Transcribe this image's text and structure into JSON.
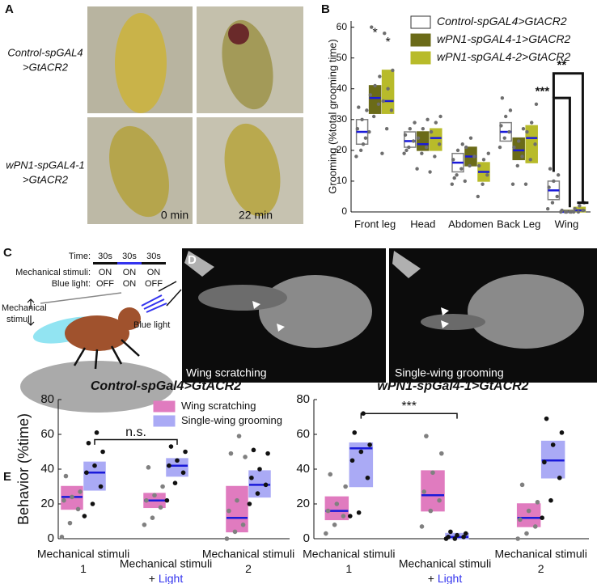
{
  "panel_letters": [
    "A",
    "B",
    "C",
    "D",
    "E"
  ],
  "panel_a": {
    "row_labels": [
      [
        "Control-spGAL4",
        ">GtACR2"
      ],
      [
        "wPN1-spGAL4-1",
        ">GtACR2"
      ]
    ],
    "time_labels": [
      "0 min",
      "22 min"
    ]
  },
  "panel_c": {
    "time_label": "Time:",
    "durations": [
      "30s",
      "30s",
      "30s"
    ],
    "rows": [
      {
        "label": "Mechanical stimuli:",
        "states": [
          "ON",
          "ON",
          "ON"
        ]
      },
      {
        "label": "Blue light:",
        "states": [
          "OFF",
          "ON",
          "OFF"
        ]
      }
    ],
    "stimulus_label": [
      "Mechanical",
      "stimuli"
    ],
    "light_label": "Blue light"
  },
  "panel_d": {
    "labels": [
      "Wing scratching",
      "Single-wing grooming"
    ]
  },
  "chart_data": [
    {
      "type": "box",
      "ylabel": "Grooming (%total grooming time)",
      "categories": [
        "Front leg",
        "Head",
        "Abdomen",
        "Back Leg",
        "Wing"
      ],
      "ylim": [
        0,
        62
      ],
      "yticks": [
        0,
        10,
        20,
        30,
        40,
        50,
        60
      ],
      "median_color": "#1a1ad9",
      "point_colors": [
        "#6e6e6e",
        "#6e6e6e",
        "#6e6e6e"
      ],
      "series": [
        {
          "name": "Control-spGAL4>GtACR2",
          "color": "#ffffff",
          "edge": "#808080",
          "q1": [
            22,
            21,
            13,
            23,
            4
          ],
          "median": [
            26,
            23,
            16,
            26,
            7
          ],
          "q3": [
            30,
            26,
            19,
            29,
            10
          ],
          "points": [
            [
              18,
              20,
              24,
              27,
              30,
              33,
              34,
              22
            ],
            [
              19,
              21,
              23,
              25,
              27,
              29,
              20
            ],
            [
              9,
              12,
              14,
              17,
              20,
              22,
              11
            ],
            [
              21,
              24,
              26,
              28,
              31,
              33,
              37
            ],
            [
              1,
              3,
              5,
              8,
              10,
              12,
              14
            ]
          ]
        },
        {
          "name": "wPN1-spGAL4-1>GtACR2",
          "color": "#6b6b18",
          "edge": "#6b6b18",
          "q1": [
            32,
            20,
            15,
            17,
            0
          ],
          "median": [
            37,
            22,
            18,
            20,
            0
          ],
          "q3": [
            41,
            26,
            21,
            24,
            0.5
          ],
          "points": [
            [
              26,
              31,
              35,
              38,
              41,
              44,
              60
            ],
            [
              14,
              19,
              21,
              24,
              27,
              30
            ],
            [
              10,
              15,
              18,
              21,
              24
            ],
            [
              9,
              15,
              18,
              21,
              23,
              27
            ],
            [
              0,
              0,
              0,
              0.5,
              0,
              0
            ]
          ]
        },
        {
          "name": "wPN1-spGAL4-2>GtACR2",
          "color": "#b8bb2a",
          "edge": "#b8bb2a",
          "q1": [
            32,
            20,
            10,
            16,
            0
          ],
          "median": [
            36,
            24,
            13,
            24,
            0.5
          ],
          "q3": [
            46,
            27,
            16,
            28,
            1.5
          ],
          "points": [
            [
              19,
              27,
              33,
              36,
              40,
              46,
              58
            ],
            [
              13,
              18,
              22,
              26,
              29,
              31
            ],
            [
              5,
              9,
              12,
              15,
              17,
              19
            ],
            [
              9,
              17,
              22,
              26,
              29,
              35
            ],
            [
              0,
              0,
              0.5,
              1,
              2,
              3
            ]
          ]
        }
      ],
      "annotations": [
        "*",
        "*",
        "***",
        "**"
      ]
    },
    {
      "type": "box",
      "title": "Control-spGal4>GtACR2",
      "ylabel": "Behavior (%time)",
      "categories": [
        "Mechanical stimuli",
        "Mechanical stimuli",
        "Mechanical stimuli"
      ],
      "sublabels": [
        {
          "text": "1"
        },
        {
          "text": "+",
          "accent": "Light"
        },
        {
          "text": "2"
        }
      ],
      "accent_color": "#3333ee",
      "ylim": [
        0,
        80
      ],
      "yticks": [
        0,
        20,
        40,
        60,
        80
      ],
      "median_color": "#1a1ad9",
      "point_colors": [
        "#808080",
        "#111111"
      ],
      "series": [
        {
          "name": "Wing scratching",
          "color": "#e07bbf",
          "edge": "#e07bbf",
          "q1": [
            17,
            18,
            4
          ],
          "median": [
            24,
            22,
            12
          ],
          "q3": [
            30,
            26,
            30
          ],
          "points": [
            [
              1,
              9,
              17,
              22,
              24,
              27,
              36
            ],
            [
              8,
              12,
              18,
              22,
              25,
              30,
              41
            ],
            [
              0,
              4,
              8,
              16,
              22,
              47,
              49,
              59
            ]
          ]
        },
        {
          "name": "Single-wing grooming",
          "color": "#aaaaf5",
          "edge": "#aaaaf5",
          "q1": [
            28,
            36,
            24
          ],
          "median": [
            38,
            42,
            31
          ],
          "q3": [
            44,
            46,
            39
          ],
          "points": [
            [
              13,
              20,
              30,
              38,
              42,
              50,
              55,
              61
            ],
            [
              22,
              32,
              38,
              42,
              45,
              50,
              53
            ],
            [
              20,
              26,
              31,
              35,
              40,
              49,
              51
            ]
          ]
        }
      ],
      "annotations": [
        "n.s."
      ]
    },
    {
      "type": "box",
      "title": "wPN1-spGal4-1>GtACR2",
      "categories": [
        "Mechanical stimuli",
        "Mechanical stimuli",
        "Mechanical stimuli"
      ],
      "sublabels": [
        {
          "text": "1"
        },
        {
          "text": "+",
          "accent": "Light"
        },
        {
          "text": "2"
        }
      ],
      "accent_color": "#3333ee",
      "ylim": [
        0,
        80
      ],
      "yticks": [
        0,
        20,
        40,
        60,
        80
      ],
      "median_color": "#1a1ad9",
      "point_colors": [
        "#808080",
        "#111111"
      ],
      "series": [
        {
          "color": "#e07bbf",
          "edge": "#e07bbf",
          "q1": [
            11,
            16,
            7
          ],
          "median": [
            16,
            25,
            12
          ],
          "q3": [
            24,
            39,
            20
          ],
          "points": [
            [
              3,
              8,
              13,
              16,
              20,
              30,
              37
            ],
            [
              7,
              16,
              22,
              27,
              38,
              49,
              59
            ],
            [
              0,
              3,
              7,
              11,
              16,
              21,
              31
            ]
          ]
        },
        {
          "color": "#aaaaf5",
          "edge": "#aaaaf5",
          "q1": [
            30,
            0,
            35
          ],
          "median": [
            52,
            1,
            45
          ],
          "q3": [
            55,
            3,
            56
          ],
          "points": [
            [
              13,
              15,
              35,
              45,
              50,
              54,
              61,
              72
            ],
            [
              0,
              0,
              1,
              1,
              2,
              3,
              4
            ],
            [
              12,
              22,
              35,
              44,
              54,
              61,
              69
            ]
          ]
        }
      ],
      "annotations": [
        "***"
      ]
    }
  ]
}
